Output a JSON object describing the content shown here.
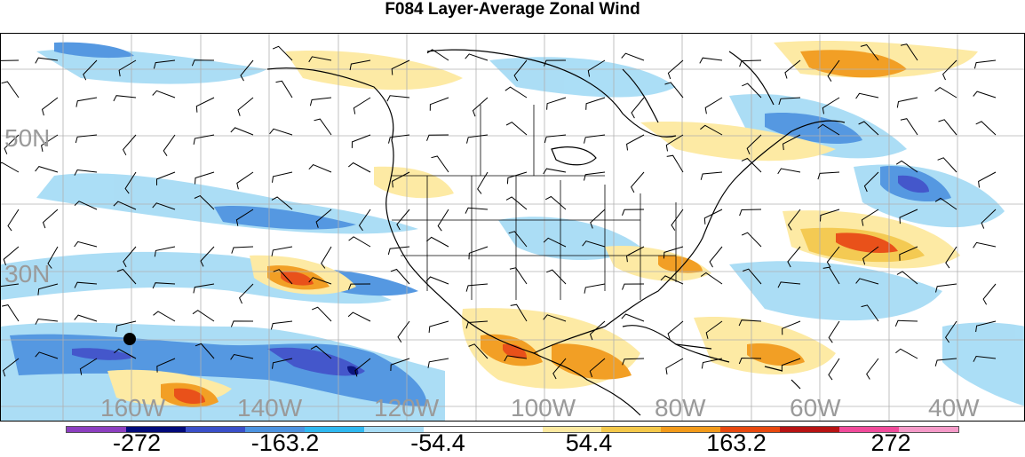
{
  "title": "F084 Layer-Average Zonal Wind",
  "lat_labels": [
    "50N",
    "30N"
  ],
  "lon_labels": [
    "160W",
    "140W",
    "120W",
    "100W",
    "80W",
    "60W",
    "40W"
  ],
  "colorbar": {
    "colors": [
      "#8c3fc0",
      "#000a7a",
      "#3a4fc9",
      "#4c93e0",
      "#2fb8f0",
      "#a7dcf5",
      "#ffffff",
      "#ffffff",
      "#fde9a0",
      "#f4c84a",
      "#f29a1a",
      "#e8480e",
      "#b81414",
      "#f04b9a",
      "#f49ac8"
    ],
    "labels": [
      "-272",
      "-163.2",
      "-54.4",
      "54.4",
      "163.2",
      "272"
    ]
  }
}
